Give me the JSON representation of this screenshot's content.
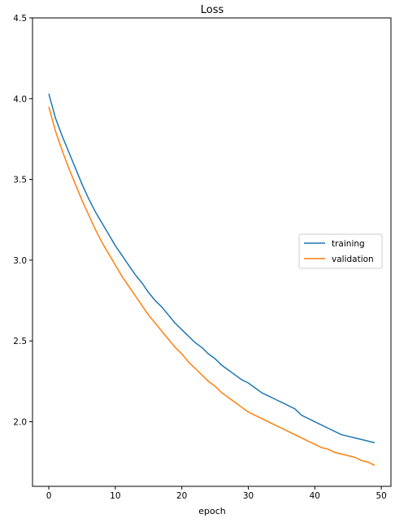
{
  "chart_data": {
    "type": "line",
    "title": "Loss",
    "xlabel": "epoch",
    "ylabel": "",
    "xlim": [
      -2.45,
      51.45
    ],
    "ylim": [
      1.6,
      4.5
    ],
    "xticks": [
      0,
      10,
      20,
      30,
      40,
      50
    ],
    "xtick_labels": [
      "0",
      "10",
      "20",
      "30",
      "40",
      "50"
    ],
    "yticks": [
      2.0,
      2.5,
      3.0,
      3.5,
      4.0,
      4.5
    ],
    "ytick_labels": [
      "2.0",
      "2.5",
      "3.0",
      "3.5",
      "4.0",
      "4.5"
    ],
    "grid": false,
    "legend": "center-right",
    "x": [
      0,
      1,
      2,
      3,
      4,
      5,
      6,
      7,
      8,
      9,
      10,
      11,
      12,
      13,
      14,
      15,
      16,
      17,
      18,
      19,
      20,
      21,
      22,
      23,
      24,
      25,
      26,
      27,
      28,
      29,
      30,
      31,
      32,
      33,
      34,
      35,
      36,
      37,
      38,
      39,
      40,
      41,
      42,
      43,
      44,
      45,
      46,
      47,
      48,
      49
    ],
    "series": [
      {
        "name": "training",
        "color": "#1f77b4",
        "values": [
          4.03,
          3.88,
          3.77,
          3.67,
          3.57,
          3.47,
          3.38,
          3.3,
          3.23,
          3.16,
          3.09,
          3.03,
          2.97,
          2.91,
          2.86,
          2.8,
          2.75,
          2.71,
          2.66,
          2.61,
          2.57,
          2.53,
          2.49,
          2.46,
          2.42,
          2.39,
          2.35,
          2.32,
          2.29,
          2.26,
          2.24,
          2.21,
          2.18,
          2.16,
          2.14,
          2.12,
          2.1,
          2.08,
          2.04,
          2.02,
          2.0,
          1.98,
          1.96,
          1.94,
          1.92,
          1.91,
          1.9,
          1.89,
          1.88,
          1.87
        ]
      },
      {
        "name": "validation",
        "color": "#ff7f0e",
        "values": [
          3.95,
          3.8,
          3.68,
          3.57,
          3.47,
          3.37,
          3.28,
          3.19,
          3.11,
          3.04,
          2.97,
          2.9,
          2.84,
          2.78,
          2.72,
          2.66,
          2.61,
          2.56,
          2.51,
          2.46,
          2.42,
          2.37,
          2.33,
          2.29,
          2.25,
          2.22,
          2.18,
          2.15,
          2.12,
          2.09,
          2.06,
          2.04,
          2.02,
          2.0,
          1.98,
          1.96,
          1.94,
          1.92,
          1.9,
          1.88,
          1.86,
          1.84,
          1.83,
          1.81,
          1.8,
          1.79,
          1.78,
          1.76,
          1.75,
          1.73
        ]
      }
    ]
  }
}
